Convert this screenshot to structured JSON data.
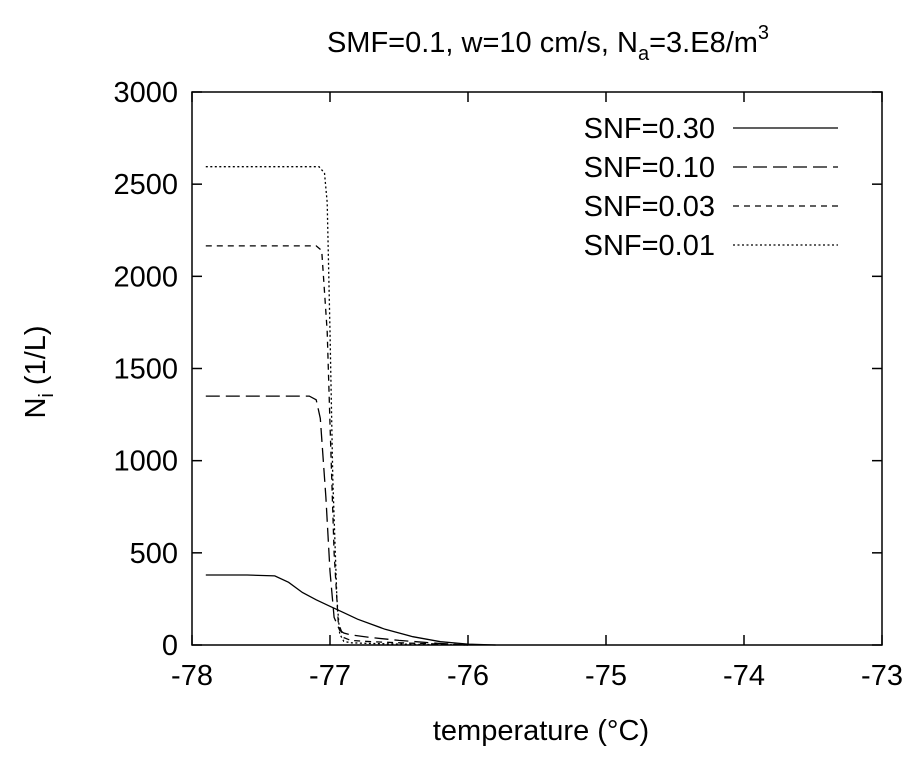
{
  "chart_data": {
    "type": "line",
    "title": {
      "prefix": "SMF=0.1, w=10 cm/s, N",
      "sub": "a",
      "middle": "=3.E8/m",
      "sup": "3"
    },
    "xlabel": "temperature (°C)",
    "ylabel": {
      "main": "N",
      "sub": "i",
      "rest": " (1/L)"
    },
    "xlim": [
      -78,
      -73
    ],
    "ylim": [
      0,
      3000
    ],
    "xticks": [
      -78,
      -77,
      -76,
      -75,
      -74,
      -73
    ],
    "yticks": [
      0,
      500,
      1000,
      1500,
      2000,
      2500,
      3000
    ],
    "grid": false,
    "legend_position": "top-right",
    "series": [
      {
        "name": "SNF=0.30",
        "dash": "solid",
        "x": [
          -77.9,
          -77.6,
          -77.4,
          -77.3,
          -77.2,
          -77.1,
          -77.0,
          -76.9,
          -76.8,
          -76.6,
          -76.4,
          -76.2,
          -76.0,
          -75.8
        ],
        "y": [
          380,
          380,
          375,
          340,
          285,
          245,
          210,
          175,
          140,
          85,
          45,
          18,
          5,
          0
        ]
      },
      {
        "name": "SNF=0.10",
        "dash": "long-dash",
        "x": [
          -77.9,
          -77.6,
          -77.3,
          -77.15,
          -77.1,
          -77.07,
          -77.03,
          -77.0,
          -76.97,
          -76.93,
          -76.9,
          -76.85,
          -76.7,
          -76.5,
          -76.2,
          -76.0
        ],
        "y": [
          1350,
          1350,
          1350,
          1350,
          1330,
          1230,
          800,
          400,
          150,
          80,
          65,
          55,
          40,
          25,
          8,
          0
        ]
      },
      {
        "name": "SNF=0.03",
        "dash": "short-dash",
        "x": [
          -77.9,
          -77.6,
          -77.3,
          -77.1,
          -77.06,
          -77.02,
          -77.0,
          -76.97,
          -76.94,
          -76.9,
          -76.85,
          -76.7,
          -76.5,
          -76.2,
          -76.0
        ],
        "y": [
          2165,
          2165,
          2165,
          2165,
          2140,
          1700,
          1200,
          500,
          120,
          40,
          25,
          18,
          12,
          5,
          0
        ]
      },
      {
        "name": "SNF=0.01",
        "dash": "dotted",
        "x": [
          -77.9,
          -77.6,
          -77.3,
          -77.08,
          -77.04,
          -77.02,
          -77.0,
          -76.98,
          -76.95,
          -76.93,
          -76.9,
          -76.85,
          -76.7,
          -76.4,
          -76.0
        ],
        "y": [
          2595,
          2595,
          2595,
          2595,
          2560,
          2400,
          1700,
          900,
          250,
          60,
          20,
          12,
          8,
          4,
          0
        ]
      }
    ]
  }
}
